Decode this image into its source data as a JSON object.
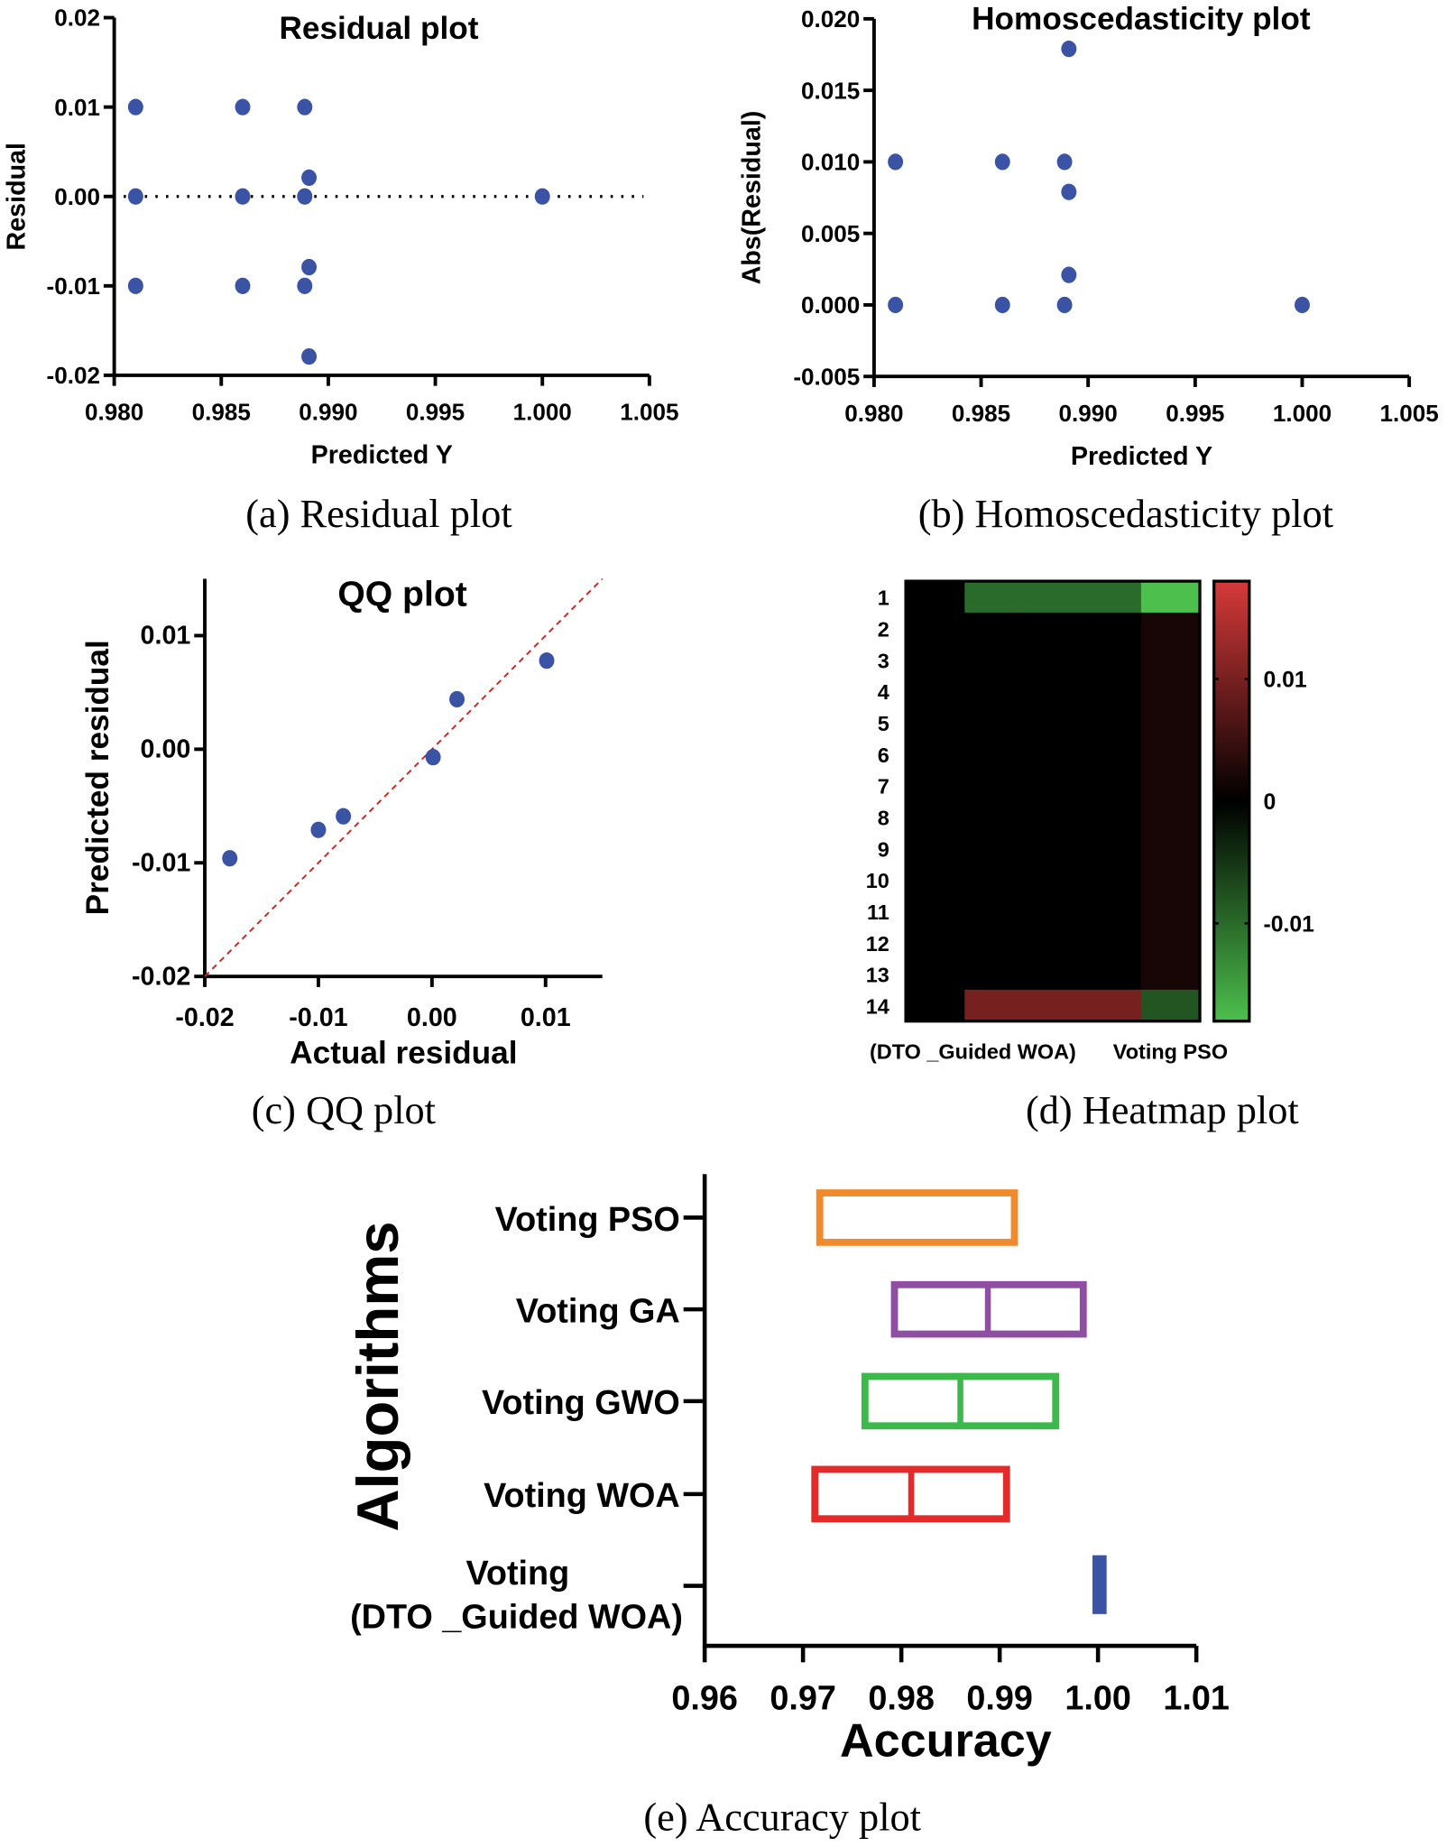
{
  "colors": {
    "point": "#3a53a4",
    "diag": "#e02020",
    "pos": "#d73a3a",
    "neg": "#4cbf4c"
  },
  "chart_data": [
    {
      "type": "scatter",
      "title": "Residual plot",
      "xlabel": "Predicted Y",
      "ylabel": "Residual",
      "caption": "(a)  Residual plot",
      "xlim": [
        0.98,
        1.005
      ],
      "ylim": [
        -0.02,
        0.02
      ],
      "xticks": [
        "0.980",
        "0.985",
        "0.990",
        "0.995",
        "1.000",
        "1.005"
      ],
      "yticks": [
        "-0.02",
        "-0.01",
        "0.00",
        "0.01",
        "0.02"
      ],
      "reference_line": {
        "y": 0,
        "style": "dotted"
      },
      "x": [
        0.981,
        0.981,
        0.981,
        0.986,
        0.986,
        0.986,
        0.9889,
        0.9889,
        0.9889,
        0.9891,
        0.9891,
        0.9891,
        1.0
      ],
      "y": [
        0.01,
        0,
        -0.01,
        0.01,
        0,
        -0.01,
        0.01,
        0,
        -0.01,
        0.0021,
        -0.0079,
        -0.0179,
        0
      ]
    },
    {
      "type": "scatter",
      "title": "Homoscedasticity plot",
      "xlabel": "Predicted Y",
      "ylabel": "Abs(Residual)",
      "caption": "(b)  Homoscedasticity plot",
      "xlim": [
        0.98,
        1.005
      ],
      "ylim": [
        -0.005,
        0.02
      ],
      "xticks": [
        "0.980",
        "0.985",
        "0.990",
        "0.995",
        "1.000",
        "1.005"
      ],
      "yticks": [
        "-0.005",
        "0.000",
        "0.005",
        "0.010",
        "0.015",
        "0.020"
      ],
      "x": [
        0.981,
        0.981,
        0.986,
        0.986,
        0.9889,
        0.9889,
        0.9891,
        0.9891,
        0.9891,
        1.0
      ],
      "y": [
        0.01,
        0,
        0.01,
        0,
        0.01,
        0,
        0.0179,
        0.0079,
        0.0021,
        0
      ]
    },
    {
      "type": "scatter",
      "title": "QQ plot",
      "xlabel": "Actual residual",
      "ylabel": "Predicted residual",
      "caption": "(c) QQ plot",
      "xlim": [
        -0.02,
        0.015
      ],
      "ylim": [
        -0.02,
        0.015
      ],
      "xticks": [
        "-0.02",
        "-0.01",
        "0.00",
        "0.01"
      ],
      "yticks": [
        "-0.02",
        "-0.01",
        "0.00",
        "0.01"
      ],
      "reference_line": {
        "type": "identity",
        "style": "dashed"
      },
      "x": [
        -0.0178,
        -0.01,
        -0.0078,
        0.0001,
        0.0022,
        0.0101
      ],
      "y": [
        -0.0096,
        -0.0071,
        -0.0059,
        -0.0007,
        0.0044,
        0.0078
      ]
    },
    {
      "type": "heatmap",
      "caption": "(d)  Heatmap plot",
      "row_labels": [
        "1",
        "2",
        "3",
        "4",
        "5",
        "6",
        "7",
        "8",
        "9",
        "10",
        "11",
        "12",
        "13",
        "14"
      ],
      "column_labels": [
        "(DTO _Guided WOA)",
        "",
        "",
        "",
        "Voting PSO"
      ],
      "colorbar": {
        "range": [
          -0.018,
          0.018
        ],
        "ticks": [
          "0.01",
          "0",
          "-0.01"
        ]
      },
      "values": [
        [
          0,
          -0.01,
          -0.01,
          -0.01,
          -0.018
        ],
        [
          0,
          0,
          0,
          0,
          0.002
        ],
        [
          0,
          0,
          0,
          0,
          0.002
        ],
        [
          0,
          0,
          0,
          0,
          0.002
        ],
        [
          0,
          0,
          0,
          0,
          0.002
        ],
        [
          0,
          0,
          0,
          0,
          0.002
        ],
        [
          0,
          0,
          0,
          0,
          0.002
        ],
        [
          0,
          0,
          0,
          0,
          0.002
        ],
        [
          0,
          0,
          0,
          0,
          0.002
        ],
        [
          0,
          0,
          0,
          0,
          0.002
        ],
        [
          0,
          0,
          0,
          0,
          0.002
        ],
        [
          0,
          0,
          0,
          0,
          0.002
        ],
        [
          0,
          0,
          0,
          0,
          0.002
        ],
        [
          0,
          0.01,
          0.01,
          0.01,
          -0.008
        ]
      ]
    },
    {
      "type": "box",
      "xlabel": "Accuracy",
      "ylabel": "Algorithms",
      "caption": "(e) Accuracy plot",
      "xlim": [
        0.96,
        1.01
      ],
      "xticks": [
        "0.96",
        "0.97",
        "0.98",
        "0.99",
        "1.00",
        "1.01"
      ],
      "categories": [
        "Voting PSO",
        "Voting GA",
        "Voting GWO",
        "Voting WOA",
        "Voting\n(DTO _Guided WOA)"
      ],
      "boxes": [
        {
          "q1": 0.9717,
          "median": 0.9915,
          "q3": 0.9915,
          "color": "#f08a2c"
        },
        {
          "q1": 0.9793,
          "median": 0.9888,
          "q3": 0.9985,
          "color": "#8e4fa3"
        },
        {
          "q1": 0.9763,
          "median": 0.986,
          "q3": 0.9957,
          "color": "#3cb94a"
        },
        {
          "q1": 0.9712,
          "median": 0.981,
          "q3": 0.9907,
          "color": "#e52a2a"
        },
        {
          "q1": 0.9995,
          "median": 1.0,
          "q3": 1.0005,
          "color": "#3a53a4"
        }
      ]
    }
  ]
}
